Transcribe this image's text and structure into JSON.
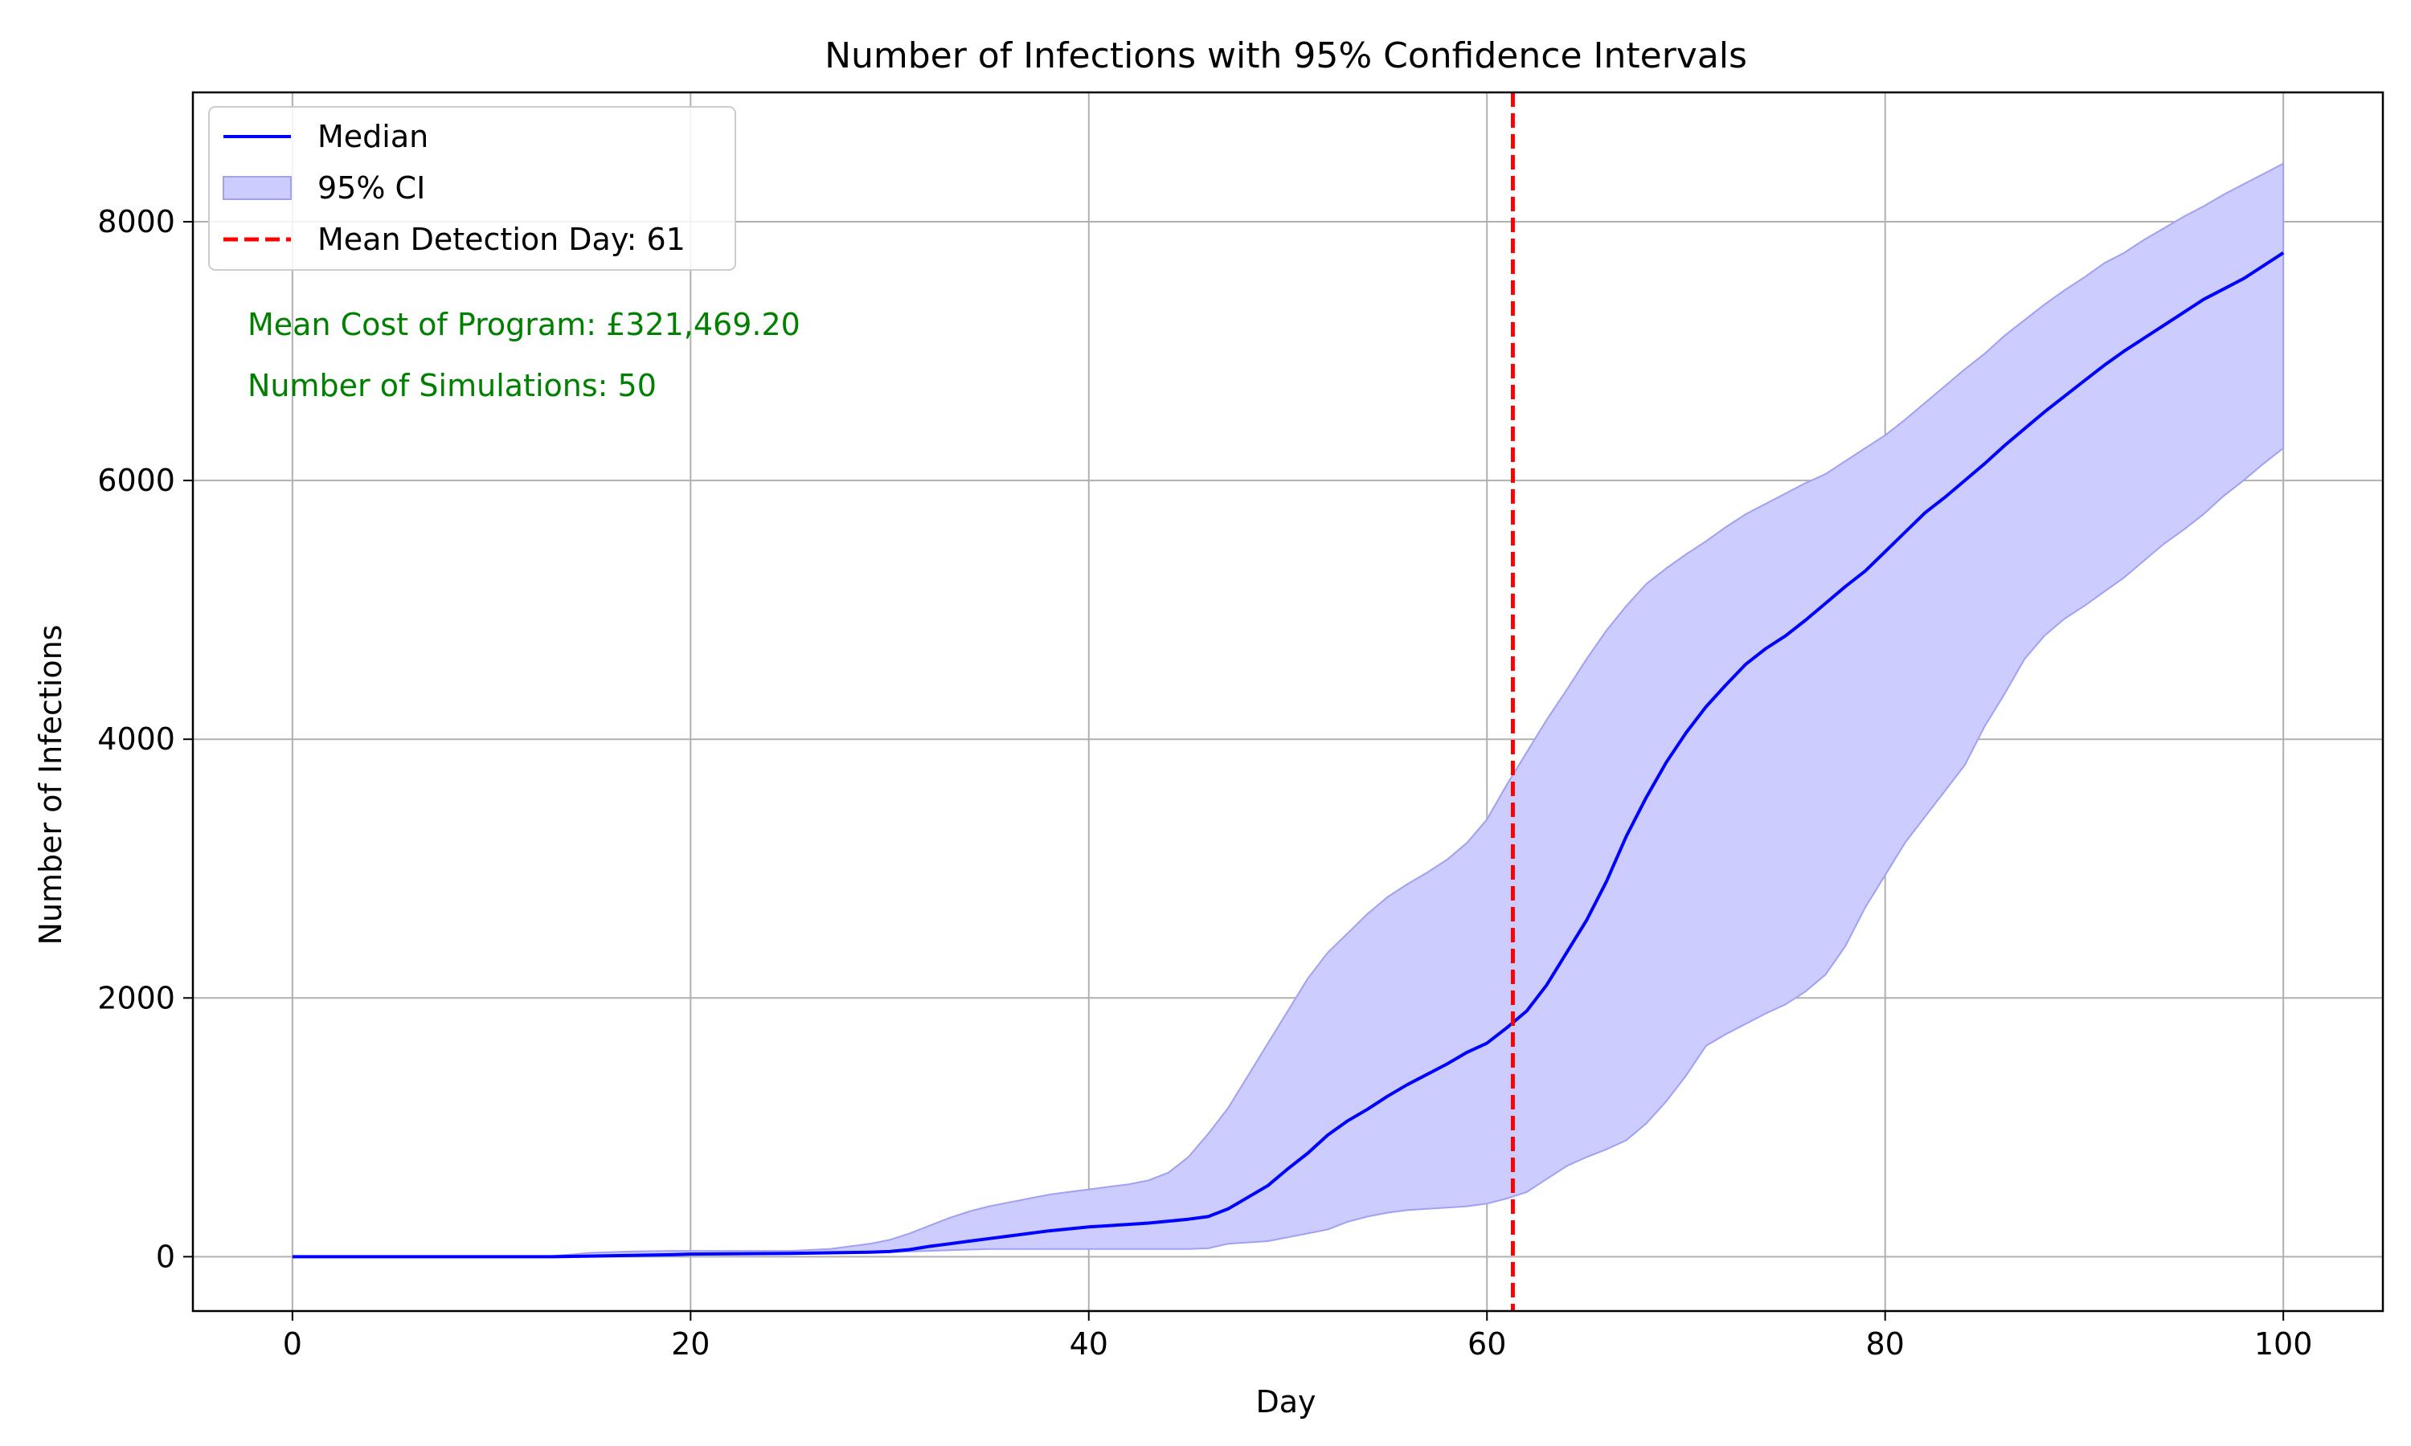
{
  "chart_data": {
    "type": "line",
    "title": "Number of Infections with 95% Confidence Intervals",
    "xlabel": "Day",
    "ylabel": "Number of Infections",
    "xlim": [
      -5,
      105
    ],
    "ylim": [
      -420,
      9000
    ],
    "xticks": [
      0,
      20,
      40,
      60,
      80,
      100
    ],
    "yticks": [
      0,
      2000,
      4000,
      6000,
      8000
    ],
    "grid": true,
    "legend_position": "top-left",
    "colors": {
      "median": "#0000ff",
      "ci_fill": "#ccccff",
      "ci_edge": "#a0a0f5",
      "detection": "#ff0000",
      "annotation": "#008000",
      "grid": "#b0b0b0"
    },
    "legend": [
      {
        "label": "Median",
        "kind": "line"
      },
      {
        "label": "95% CI",
        "kind": "patch"
      },
      {
        "label": "Mean Detection Day: 61",
        "kind": "dashed"
      }
    ],
    "annotations": [
      "Mean Cost of Program: £321,469.20",
      "Number of Simulations: 50"
    ],
    "detection_day": 61.3,
    "x": [
      0,
      10,
      13,
      15,
      17,
      19,
      20,
      25,
      27,
      29,
      30,
      31,
      32,
      33,
      34,
      35,
      36,
      37,
      38,
      39,
      40,
      41,
      42,
      43,
      44,
      45,
      46,
      47,
      48,
      49,
      50,
      51,
      52,
      53,
      54,
      55,
      56,
      57,
      58,
      59,
      60,
      61,
      62,
      63,
      64,
      65,
      66,
      67,
      68,
      69,
      70,
      71,
      72,
      73,
      74,
      75,
      76,
      77,
      78,
      79,
      80,
      81,
      82,
      83,
      84,
      85,
      86,
      87,
      88,
      89,
      90,
      91,
      92,
      93,
      94,
      95,
      96,
      97,
      98,
      99,
      100
    ],
    "series": [
      {
        "name": "Median",
        "values": [
          0,
          0,
          0,
          5,
          10,
          15,
          20,
          25,
          30,
          35,
          40,
          55,
          80,
          100,
          120,
          140,
          160,
          180,
          200,
          215,
          230,
          240,
          250,
          260,
          275,
          290,
          310,
          370,
          460,
          550,
          680,
          800,
          940,
          1050,
          1140,
          1240,
          1330,
          1410,
          1490,
          1580,
          1650,
          1770,
          1900,
          2100,
          2350,
          2600,
          2900,
          3250,
          3550,
          3820,
          4050,
          4250,
          4420,
          4580,
          4700,
          4800,
          4920,
          5050,
          5180,
          5300,
          5450,
          5600,
          5750,
          5870,
          6000,
          6130,
          6270,
          6400,
          6530,
          6650,
          6770,
          6890,
          7000,
          7100,
          7200,
          7300,
          7400,
          7480,
          7560,
          7660,
          7760
        ]
      },
      {
        "name": "95% CI upper",
        "values": [
          0,
          0,
          5,
          30,
          40,
          45,
          45,
          45,
          60,
          100,
          130,
          180,
          240,
          300,
          350,
          390,
          420,
          450,
          480,
          500,
          520,
          540,
          560,
          590,
          650,
          770,
          950,
          1150,
          1400,
          1650,
          1900,
          2150,
          2350,
          2500,
          2650,
          2780,
          2880,
          2970,
          3070,
          3200,
          3380,
          3650,
          3900,
          4150,
          4380,
          4620,
          4840,
          5030,
          5200,
          5320,
          5430,
          5530,
          5640,
          5740,
          5820,
          5900,
          5980,
          6050,
          6150,
          6250,
          6350,
          6470,
          6600,
          6730,
          6860,
          6980,
          7120,
          7240,
          7360,
          7470,
          7570,
          7680,
          7760,
          7860,
          7950,
          8040,
          8120,
          8210,
          8290,
          8370,
          8450
        ]
      },
      {
        "name": "95% CI lower",
        "values": [
          0,
          0,
          0,
          0,
          5,
          10,
          15,
          20,
          25,
          30,
          35,
          40,
          45,
          50,
          55,
          60,
          60,
          60,
          60,
          60,
          60,
          60,
          60,
          60,
          60,
          60,
          65,
          100,
          110,
          120,
          150,
          180,
          210,
          270,
          310,
          340,
          360,
          370,
          380,
          390,
          410,
          450,
          500,
          600,
          700,
          770,
          830,
          900,
          1030,
          1200,
          1400,
          1630,
          1720,
          1800,
          1880,
          1950,
          2050,
          2180,
          2400,
          2700,
          2950,
          3200,
          3400,
          3600,
          3800,
          4100,
          4350,
          4620,
          4800,
          4930,
          5030,
          5140,
          5250,
          5380,
          5510,
          5620,
          5740,
          5880,
          6000,
          6130,
          6250
        ]
      }
    ]
  }
}
